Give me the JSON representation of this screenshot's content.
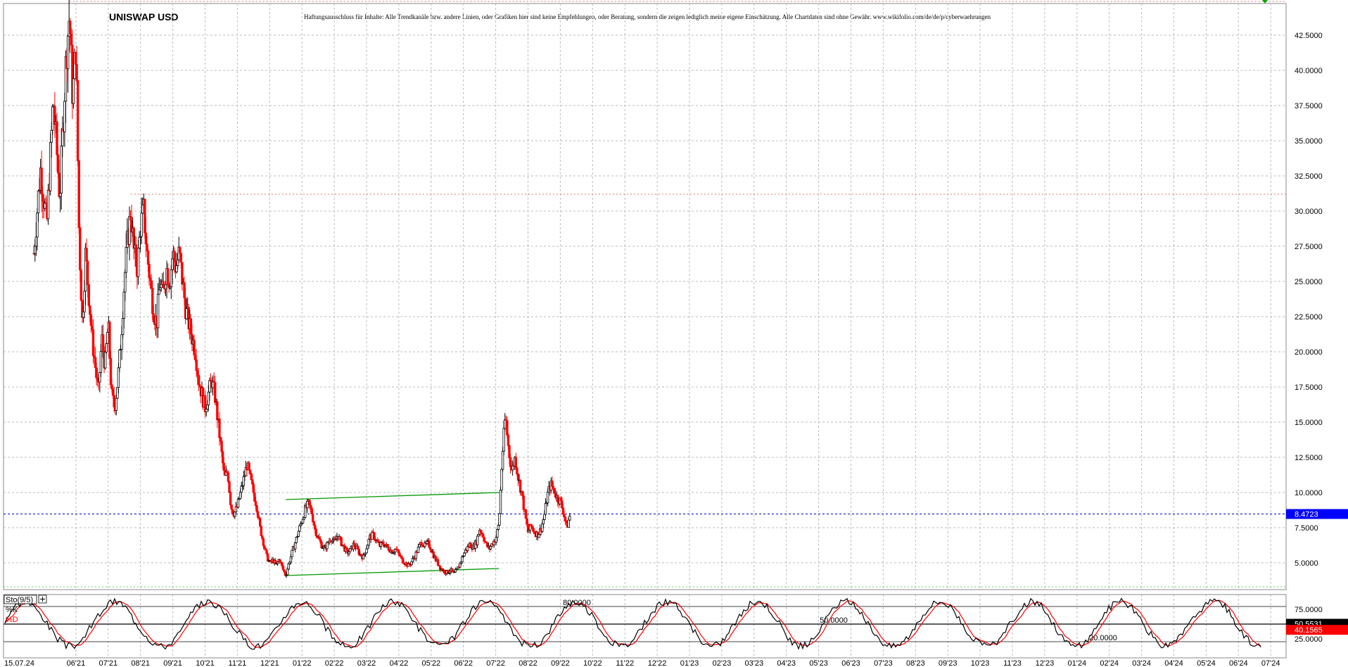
{
  "chart_data": [
    {
      "type": "candlestick",
      "title": "UNISWAP USD",
      "disclaimer": "Haftungsausschluss für Inhalte: Alle Trendkanäle bzw. andere Linien, oder Grafiken hier sind keine Empfehlungen, oder Beratung, sondern die zeigen lediglich meine eigene Einschätzung. Alle Chartdaten sind ohne Gewähr. www.wikifolio.com/de/de/p/cyberwaehrungen",
      "ylim": [
        3.0,
        45.0
      ],
      "y_ticks": [
        "42.5000",
        "40.0000",
        "37.5000",
        "35.0000",
        "32.5000",
        "30.0000",
        "27.5000",
        "25.0000",
        "22.5000",
        "20.0000",
        "17.5000",
        "15.0000",
        "12.5000",
        "10.0000",
        "7.5000",
        "5.0000"
      ],
      "y_tick_values": [
        42.5,
        40,
        37.5,
        35,
        32.5,
        30,
        27.5,
        25,
        22.5,
        20,
        17.5,
        15,
        12.5,
        10,
        7.5,
        5
      ],
      "x_labels": [
        "15.07.24",
        "06'21",
        "07'21",
        "08'21",
        "09'21",
        "10'21",
        "11'21",
        "12'21",
        "01'22",
        "02'22",
        "03'22",
        "04'22",
        "05'22",
        "06'22",
        "07'22",
        "08'22",
        "09'22",
        "10'22",
        "11'22",
        "12'22",
        "01'23",
        "02'23",
        "03'23",
        "04'23",
        "05'23",
        "06'23",
        "07'23",
        "08'23",
        "09'23",
        "10'23",
        "11'23",
        "12'23",
        "01'24",
        "02'24",
        "03'24",
        "04'24",
        "05'24",
        "06'24",
        "07'24"
      ],
      "x_months": [
        0,
        1,
        2,
        3,
        4,
        5,
        6,
        7,
        8,
        9,
        10,
        11,
        12,
        13,
        14,
        15,
        16,
        17,
        18,
        19,
        20,
        21,
        22,
        23,
        24,
        25,
        26,
        27,
        28,
        29,
        30,
        31,
        32,
        33,
        34,
        35,
        36,
        37,
        38
      ],
      "price_path": [
        [
          -0.3,
          27
        ],
        [
          -0.1,
          33
        ],
        [
          0.1,
          29
        ],
        [
          0.3,
          38
        ],
        [
          0.5,
          31
        ],
        [
          0.7,
          41
        ],
        [
          0.8,
          44
        ],
        [
          0.9,
          38
        ],
        [
          1.0,
          42
        ],
        [
          1.1,
          28
        ],
        [
          1.2,
          22
        ],
        [
          1.3,
          27
        ],
        [
          1.4,
          24
        ],
        [
          1.5,
          21
        ],
        [
          1.6,
          19
        ],
        [
          1.7,
          17
        ],
        [
          1.8,
          21
        ],
        [
          1.9,
          19
        ],
        [
          2.0,
          22
        ],
        [
          2.1,
          17
        ],
        [
          2.2,
          16
        ],
        [
          2.3,
          18
        ],
        [
          2.4,
          21
        ],
        [
          2.5,
          25
        ],
        [
          2.6,
          28
        ],
        [
          2.7,
          30
        ],
        [
          2.8,
          27
        ],
        [
          2.9,
          26
        ],
        [
          3.0,
          29
        ],
        [
          3.1,
          30
        ],
        [
          3.2,
          27
        ],
        [
          3.3,
          25
        ],
        [
          3.4,
          23
        ],
        [
          3.5,
          22
        ],
        [
          3.6,
          25
        ],
        [
          3.7,
          24
        ],
        [
          3.8,
          26
        ],
        [
          3.9,
          25
        ],
        [
          4.0,
          27
        ],
        [
          4.1,
          26
        ],
        [
          4.2,
          27
        ],
        [
          4.3,
          25
        ],
        [
          4.4,
          23
        ],
        [
          4.5,
          22
        ],
        [
          4.6,
          21
        ],
        [
          4.7,
          20
        ],
        [
          4.8,
          18
        ],
        [
          4.9,
          17
        ],
        [
          5.0,
          16
        ],
        [
          5.1,
          17
        ],
        [
          5.2,
          18
        ],
        [
          5.3,
          17
        ],
        [
          5.4,
          15
        ],
        [
          5.5,
          13
        ],
        [
          5.6,
          11
        ],
        [
          5.7,
          11.5
        ],
        [
          5.8,
          9
        ],
        [
          5.9,
          8.5
        ],
        [
          6.0,
          9
        ],
        [
          6.1,
          10
        ],
        [
          6.2,
          11
        ],
        [
          6.3,
          12
        ],
        [
          6.4,
          11
        ],
        [
          6.5,
          10
        ],
        [
          6.6,
          9
        ],
        [
          6.7,
          7.5
        ],
        [
          6.8,
          6.5
        ],
        [
          6.9,
          5.5
        ],
        [
          7.0,
          5.0
        ],
        [
          7.1,
          5.2
        ],
        [
          7.2,
          4.8
        ],
        [
          7.3,
          5.3
        ],
        [
          7.4,
          4.6
        ],
        [
          7.5,
          4.1
        ],
        [
          7.6,
          5.0
        ],
        [
          7.7,
          5.8
        ],
        [
          7.8,
          6.5
        ],
        [
          7.9,
          7.3
        ],
        [
          8.0,
          8.0
        ],
        [
          8.1,
          8.8
        ],
        [
          8.2,
          9.2
        ],
        [
          8.3,
          8.6
        ],
        [
          8.4,
          7.4
        ],
        [
          8.5,
          6.8
        ],
        [
          8.6,
          6.3
        ],
        [
          8.7,
          6.0
        ],
        [
          8.8,
          6.4
        ],
        [
          8.9,
          6.8
        ],
        [
          9.0,
          6.4
        ],
        [
          9.1,
          7.0
        ],
        [
          9.2,
          6.5
        ],
        [
          9.3,
          6.1
        ],
        [
          9.4,
          5.7
        ],
        [
          9.5,
          5.9
        ],
        [
          9.6,
          6.3
        ],
        [
          9.7,
          6.0
        ],
        [
          9.8,
          5.6
        ],
        [
          9.9,
          5.4
        ],
        [
          10.0,
          6.1
        ],
        [
          10.1,
          6.8
        ],
        [
          10.2,
          7.0
        ],
        [
          10.3,
          6.6
        ],
        [
          10.4,
          6.2
        ],
        [
          10.5,
          6.4
        ],
        [
          10.6,
          6.2
        ],
        [
          10.7,
          6.0
        ],
        [
          10.8,
          5.8
        ],
        [
          10.9,
          6.0
        ],
        [
          11.0,
          5.6
        ],
        [
          11.1,
          5.2
        ],
        [
          11.2,
          5.0
        ],
        [
          11.3,
          4.8
        ],
        [
          11.4,
          5.1
        ],
        [
          11.5,
          5.5
        ],
        [
          11.6,
          6.0
        ],
        [
          11.7,
          6.5
        ],
        [
          11.8,
          6.2
        ],
        [
          11.9,
          6.4
        ],
        [
          12.0,
          6.0
        ],
        [
          12.1,
          5.4
        ],
        [
          12.2,
          5.0
        ],
        [
          12.3,
          4.6
        ],
        [
          12.4,
          4.4
        ],
        [
          12.5,
          4.3
        ],
        [
          12.6,
          4.5
        ],
        [
          12.7,
          4.2
        ],
        [
          12.8,
          4.5
        ],
        [
          12.9,
          5.0
        ],
        [
          13.0,
          5.6
        ],
        [
          13.1,
          6.0
        ],
        [
          13.2,
          6.3
        ],
        [
          13.3,
          6.1
        ],
        [
          13.4,
          6.5
        ],
        [
          13.5,
          7.4
        ],
        [
          13.6,
          7.0
        ],
        [
          13.7,
          6.3
        ],
        [
          13.8,
          6.0
        ],
        [
          13.9,
          6.4
        ],
        [
          14.0,
          6.7
        ],
        [
          14.1,
          7.8
        ],
        [
          14.2,
          12.5
        ],
        [
          14.3,
          15.5
        ],
        [
          14.4,
          13.0
        ],
        [
          14.5,
          11.5
        ],
        [
          14.6,
          12.5
        ],
        [
          14.7,
          11.0
        ],
        [
          14.8,
          10.0
        ],
        [
          14.9,
          8.5
        ],
        [
          15.0,
          7.2
        ],
        [
          15.1,
          7.6
        ],
        [
          15.2,
          7.2
        ],
        [
          15.3,
          7.0
        ],
        [
          15.4,
          7.4
        ],
        [
          15.5,
          8.3
        ],
        [
          15.6,
          9.8
        ],
        [
          15.7,
          10.6
        ],
        [
          15.8,
          10.2
        ],
        [
          15.9,
          9.6
        ],
        [
          16.0,
          9.4
        ],
        [
          16.1,
          8.6
        ],
        [
          16.2,
          7.5
        ],
        [
          16.3,
          8.4
        ]
      ],
      "stochastic": {
        "label": "Sto(9/5)",
        "k_label": "%K",
        "d_label": "%D",
        "ylim": [
          0,
          100
        ],
        "y_ticks": [
          "75.0000",
          "25.0000"
        ],
        "y_tick_values": [
          75,
          25
        ],
        "level_labels": [
          "80.0000",
          "50.0000",
          "20.0000"
        ],
        "level_values": [
          80,
          50,
          20
        ],
        "k_value": "50.5531",
        "d_value": "40.1565"
      },
      "current_price": "8.4723",
      "colors": {
        "up": "#000000",
        "down": "#ff0000",
        "price_marker": "#0000ff",
        "channel": "#009900",
        "k_line": "#000000",
        "d_line": "#ff0000"
      }
    }
  ]
}
